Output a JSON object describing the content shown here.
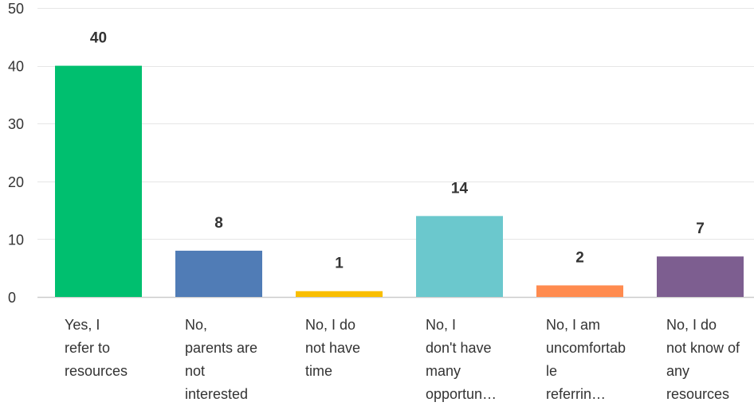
{
  "chart_data": {
    "type": "bar",
    "title": "",
    "xlabel": "",
    "ylabel": "",
    "ylim": [
      0,
      50
    ],
    "yticks": [
      0,
      10,
      20,
      30,
      40,
      50
    ],
    "grid": true,
    "legend": "none",
    "categories": [
      [
        "Yes, I",
        "refer to",
        "resources"
      ],
      [
        "No,",
        "parents are",
        "not",
        "interested"
      ],
      [
        "No, I do",
        "not have",
        "time"
      ],
      [
        "No, I",
        "don't have",
        "many",
        "opportun…"
      ],
      [
        "No, I am",
        "uncomfortab",
        "le",
        "referrin…"
      ],
      [
        "No, I do",
        "not know of",
        "any",
        "resources"
      ]
    ],
    "values": [
      40,
      8,
      1,
      14,
      2,
      7
    ],
    "colors": [
      "#00bf6f",
      "#507cb6",
      "#f9be00",
      "#6bc8cd",
      "#ff8b4f",
      "#7d5e90"
    ],
    "grid_color": "#e6e6e6",
    "axis_color": "#cccccc"
  }
}
